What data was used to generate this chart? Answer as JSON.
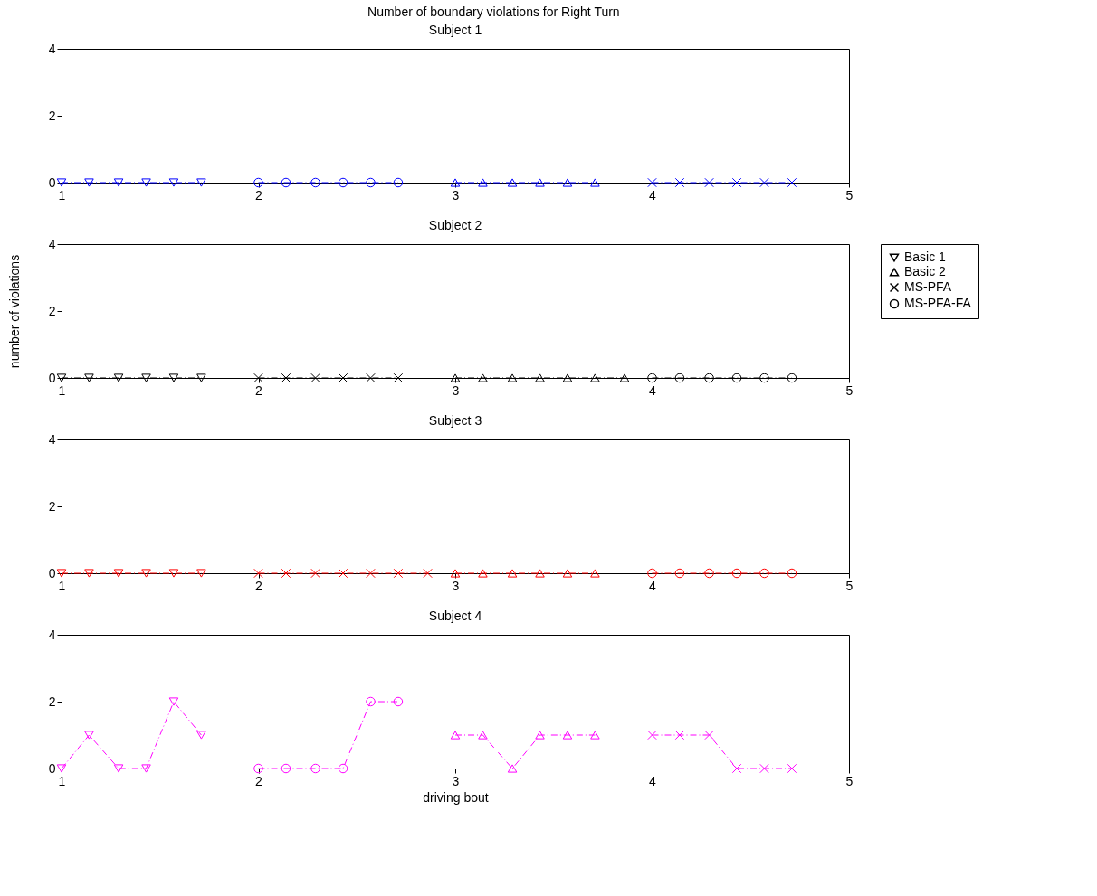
{
  "chart_data": [
    {
      "type": "line",
      "title": "Number of boundary violations for Right Turn",
      "subtitle": "Subject 1",
      "xlim": [
        1,
        5
      ],
      "xticks": [
        1,
        2,
        3,
        4,
        5
      ],
      "ylim": [
        0,
        4
      ],
      "yticks": [
        0,
        2,
        4
      ],
      "grid": false,
      "legend": false,
      "line_style": "dashed",
      "series": [
        {
          "color": "#0000ff",
          "marker": "triangle-down",
          "x": [
            1,
            1.14,
            1.29,
            1.43,
            1.57,
            1.71
          ],
          "values": [
            0,
            0,
            0,
            0,
            0,
            0
          ]
        },
        {
          "color": "#0000ff",
          "marker": "triangle",
          "x": [
            3,
            3.14,
            3.29,
            3.43,
            3.57,
            3.71
          ],
          "values": [
            0,
            0,
            0,
            0,
            0,
            0
          ]
        },
        {
          "color": "#0000ff",
          "marker": "cross",
          "x": [
            4,
            4.14,
            4.29,
            4.43,
            4.57,
            4.71
          ],
          "values": [
            0,
            0,
            0,
            0,
            0,
            0
          ]
        },
        {
          "color": "#0000ff",
          "marker": "circle",
          "x": [
            2,
            2.14,
            2.29,
            2.43,
            2.57,
            2.71
          ],
          "values": [
            0,
            0,
            0,
            0,
            0,
            0
          ]
        }
      ]
    },
    {
      "type": "line",
      "title": "Subject 2",
      "ylabel": "number of violations",
      "xlim": [
        1,
        5
      ],
      "xticks": [
        1,
        2,
        3,
        4,
        5
      ],
      "ylim": [
        0,
        4
      ],
      "yticks": [
        0,
        2,
        4
      ],
      "grid": false,
      "legend": "right",
      "line_style": "dashed",
      "series": [
        {
          "name": "Basic 1",
          "color": "#000000",
          "marker": "triangle-down",
          "x": [
            1,
            1.14,
            1.29,
            1.43,
            1.57,
            1.71
          ],
          "values": [
            0,
            0,
            0,
            0,
            0,
            0
          ]
        },
        {
          "name": "Basic 2",
          "color": "#000000",
          "marker": "triangle",
          "x": [
            3,
            3.14,
            3.29,
            3.43,
            3.57,
            3.71,
            3.86
          ],
          "values": [
            0,
            0,
            0,
            0,
            0,
            0,
            0
          ]
        },
        {
          "name": "MS-PFA",
          "color": "#000000",
          "marker": "cross",
          "x": [
            2,
            2.14,
            2.29,
            2.43,
            2.57,
            2.71
          ],
          "values": [
            0,
            0,
            0,
            0,
            0,
            0
          ]
        },
        {
          "name": "MS-PFA-FA",
          "color": "#000000",
          "marker": "circle",
          "x": [
            4,
            4.14,
            4.29,
            4.43,
            4.57,
            4.71
          ],
          "values": [
            0,
            0,
            0,
            0,
            0,
            0
          ]
        }
      ]
    },
    {
      "type": "line",
      "title": "Subject 3",
      "xlim": [
        1,
        5
      ],
      "xticks": [
        1,
        2,
        3,
        4,
        5
      ],
      "ylim": [
        0,
        4
      ],
      "yticks": [
        0,
        2,
        4
      ],
      "grid": false,
      "legend": false,
      "line_style": "dashed",
      "series": [
        {
          "color": "#ff0000",
          "marker": "triangle-down",
          "x": [
            1,
            1.14,
            1.29,
            1.43,
            1.57,
            1.71
          ],
          "values": [
            0,
            0,
            0,
            0,
            0,
            0
          ]
        },
        {
          "color": "#ff0000",
          "marker": "triangle",
          "x": [
            3,
            3.14,
            3.29,
            3.43,
            3.57,
            3.71
          ],
          "values": [
            0,
            0,
            0,
            0,
            0,
            0
          ]
        },
        {
          "color": "#ff0000",
          "marker": "cross",
          "x": [
            2,
            2.14,
            2.29,
            2.43,
            2.57,
            2.71,
            2.86
          ],
          "values": [
            0,
            0,
            0,
            0,
            0,
            0,
            0
          ]
        },
        {
          "color": "#ff0000",
          "marker": "circle",
          "x": [
            4,
            4.14,
            4.29,
            4.43,
            4.57,
            4.71
          ],
          "values": [
            0,
            0,
            0,
            0,
            0,
            0
          ]
        }
      ]
    },
    {
      "type": "line",
      "title": "Subject 4",
      "xlabel": "driving bout",
      "xlim": [
        1,
        5
      ],
      "xticks": [
        1,
        2,
        3,
        4,
        5
      ],
      "ylim": [
        0,
        4
      ],
      "yticks": [
        0,
        2,
        4
      ],
      "grid": false,
      "legend": false,
      "line_style": "dashed",
      "series": [
        {
          "color": "#ff00ff",
          "marker": "triangle-down",
          "x": [
            1,
            1.14,
            1.29,
            1.43,
            1.57,
            1.71
          ],
          "values": [
            0,
            1,
            0,
            0,
            2,
            1
          ]
        },
        {
          "color": "#ff00ff",
          "marker": "triangle",
          "x": [
            3,
            3.14,
            3.29,
            3.43,
            3.57,
            3.71
          ],
          "values": [
            1,
            1,
            0,
            1,
            1,
            1
          ]
        },
        {
          "color": "#ff00ff",
          "marker": "cross",
          "x": [
            4,
            4.14,
            4.29,
            4.43,
            4.57,
            4.71
          ],
          "values": [
            1,
            1,
            1,
            0,
            0,
            0
          ]
        },
        {
          "color": "#ff00ff",
          "marker": "circle",
          "x": [
            2,
            2.14,
            2.29,
            2.43,
            2.57,
            2.71
          ],
          "values": [
            0,
            0,
            0,
            0,
            2,
            2
          ]
        }
      ]
    }
  ]
}
